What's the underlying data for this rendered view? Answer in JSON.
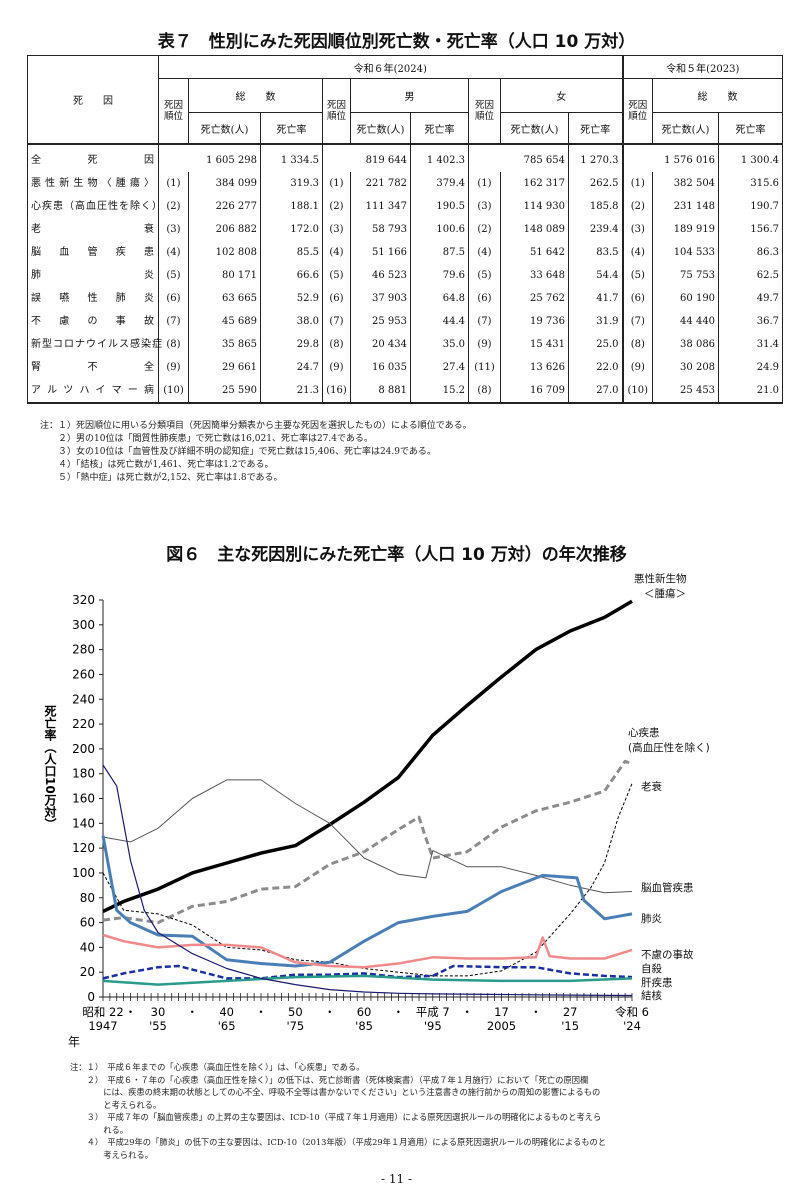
{
  "table": {
    "title": "表７　性別にみた死因順位別死亡数・死亡率（人口 10 万対）",
    "cause_header": "死　　因",
    "year_2024": "令和６年(2024)",
    "year_2023": "令和５年(2023)",
    "rank_header": "死因順位",
    "total": "総　　数",
    "male": "男",
    "female": "女",
    "deaths": "死亡数(人)",
    "rate": "死亡率",
    "rows": [
      {
        "cause": "全　　死　　因",
        "t": [
          "",
          "1 605 298",
          "1 334.5"
        ],
        "m": [
          "",
          "819 644",
          "1 402.3"
        ],
        "f": [
          "",
          "785 654",
          "1 270.3"
        ],
        "p": [
          "",
          "1 576 016",
          "1 300.4"
        ]
      },
      {
        "cause": "悪性新生物〈腫瘍〉",
        "t": [
          "(1)",
          "384 099",
          "319.3"
        ],
        "m": [
          "(1)",
          "221 782",
          "379.4"
        ],
        "f": [
          "(1)",
          "162 317",
          "262.5"
        ],
        "p": [
          "(1)",
          "382 504",
          "315.6"
        ]
      },
      {
        "cause": "心疾患（高血圧性を除く）",
        "t": [
          "(2)",
          "226 277",
          "188.1"
        ],
        "m": [
          "(2)",
          "111 347",
          "190.5"
        ],
        "f": [
          "(3)",
          "114 930",
          "185.8"
        ],
        "p": [
          "(2)",
          "231 148",
          "190.7"
        ]
      },
      {
        "cause": "老衰",
        "t": [
          "(3)",
          "206 882",
          "172.0"
        ],
        "m": [
          "(3)",
          "58 793",
          "100.6"
        ],
        "f": [
          "(2)",
          "148 089",
          "239.4"
        ],
        "p": [
          "(3)",
          "189 919",
          "156.7"
        ]
      },
      {
        "cause": "脳血管疾患",
        "t": [
          "(4)",
          "102 808",
          "85.5"
        ],
        "m": [
          "(4)",
          "51 166",
          "87.5"
        ],
        "f": [
          "(4)",
          "51 642",
          "83.5"
        ],
        "p": [
          "(4)",
          "104 533",
          "86.3"
        ]
      },
      {
        "cause": "肺炎",
        "t": [
          "(5)",
          "80 171",
          "66.6"
        ],
        "m": [
          "(5)",
          "46 523",
          "79.6"
        ],
        "f": [
          "(5)",
          "33 648",
          "54.4"
        ],
        "p": [
          "(5)",
          "75 753",
          "62.5"
        ]
      },
      {
        "cause": "誤嚥性肺炎",
        "t": [
          "(6)",
          "63 665",
          "52.9"
        ],
        "m": [
          "(6)",
          "37 903",
          "64.8"
        ],
        "f": [
          "(6)",
          "25 762",
          "41.7"
        ],
        "p": [
          "(6)",
          "60 190",
          "49.7"
        ]
      },
      {
        "cause": "不慮の事故",
        "t": [
          "(7)",
          "45 689",
          "38.0"
        ],
        "m": [
          "(7)",
          "25 953",
          "44.4"
        ],
        "f": [
          "(7)",
          "19 736",
          "31.9"
        ],
        "p": [
          "(7)",
          "44 440",
          "36.7"
        ]
      },
      {
        "cause": "新型コロナウイルス感染症",
        "t": [
          "(8)",
          "35 865",
          "29.8"
        ],
        "m": [
          "(8)",
          "20 434",
          "35.0"
        ],
        "f": [
          "(9)",
          "15 431",
          "25.0"
        ],
        "p": [
          "(8)",
          "38 086",
          "31.4"
        ]
      },
      {
        "cause": "腎不全",
        "t": [
          "(9)",
          "29 661",
          "24.7"
        ],
        "m": [
          "(9)",
          "16 035",
          "27.4"
        ],
        "f": [
          "(11)",
          "13 626",
          "22.0"
        ],
        "p": [
          "(9)",
          "30 208",
          "24.9"
        ]
      },
      {
        "cause": "アルツハイマー病",
        "t": [
          "(10)",
          "25 590",
          "21.3"
        ],
        "m": [
          "(16)",
          "8 881",
          "15.2"
        ],
        "f": [
          "(8)",
          "16 709",
          "27.0"
        ],
        "p": [
          "(10)",
          "25 453",
          "21.0"
        ]
      }
    ],
    "notes": [
      "注：１）死因順位に用いる分類項目（死因簡単分類表から主要な死因を選択したもの）による順位である。",
      "　　２）男の10位は「間質性肺疾患」で死亡数は16,021、死亡率は27.4である。",
      "　　３）女の10位は「血管性及び詳細不明の認知症」で死亡数は15,406、死亡率は24.9である。",
      "　　４）「結核」は死亡数が1,461、死亡率は1.2である。",
      "　　５）「熱中症」は死亡数が2,152、死亡率は1.8である。"
    ]
  },
  "chart_data": {
    "type": "line",
    "title": "図６　主な死因別にみた死亡率（人口 10 万対）の年次推移",
    "ylabel": "死亡率（人口10万対）",
    "xlabel": "年",
    "ylim": [
      0,
      320
    ],
    "yticks": [
      "0",
      "20",
      "40",
      "60",
      "80",
      "100",
      "120",
      "140",
      "160",
      "180",
      "200",
      "220",
      "240",
      "260",
      "280",
      "300",
      "320"
    ],
    "xlim": [
      1947,
      2024
    ],
    "xticks": [
      {
        "year": 1947,
        "era": "昭和 22",
        "west": "1947"
      },
      {
        "year": 1951,
        "era": "・",
        "west": ""
      },
      {
        "year": 1955,
        "era": "30",
        "west": "'55"
      },
      {
        "year": 1960,
        "era": "・",
        "west": ""
      },
      {
        "year": 1965,
        "era": "40",
        "west": "'65"
      },
      {
        "year": 1970,
        "era": "・",
        "west": ""
      },
      {
        "year": 1975,
        "era": "50",
        "west": "'75"
      },
      {
        "year": 1980,
        "era": "・",
        "west": ""
      },
      {
        "year": 1985,
        "era": "60",
        "west": "'85"
      },
      {
        "year": 1990,
        "era": "・",
        "west": ""
      },
      {
        "year": 1995,
        "era": "平成 7",
        "west": "'95"
      },
      {
        "year": 2000,
        "era": "・",
        "west": ""
      },
      {
        "year": 2005,
        "era": "17",
        "west": "2005"
      },
      {
        "year": 2010,
        "era": "・",
        "west": ""
      },
      {
        "year": 2015,
        "era": "27",
        "west": "'15"
      },
      {
        "year": 2024,
        "era": "令和 6",
        "west": "'24"
      }
    ],
    "series": [
      {
        "name": "悪性新生物＜腫瘍＞",
        "color": "#000000",
        "x": [
          1947,
          1950,
          1955,
          1960,
          1965,
          1970,
          1975,
          1980,
          1985,
          1990,
          1995,
          2000,
          2005,
          2010,
          2015,
          2020,
          2024
        ],
        "y": [
          69,
          77,
          87,
          100,
          108,
          116,
          122,
          139,
          157,
          177,
          211,
          235,
          258,
          280,
          295,
          306,
          319
        ]
      },
      {
        "name": "心疾患（高血圧性を除く）",
        "color": "#8c8c8c",
        "x": [
          1947,
          1950,
          1955,
          1960,
          1965,
          1970,
          1975,
          1980,
          1985,
          1990,
          1993,
          1994,
          1995,
          2000,
          2005,
          2010,
          2015,
          2020,
          2023,
          2024
        ],
        "y": [
          62,
          64,
          60,
          73,
          77,
          87,
          89,
          107,
          117,
          135,
          145,
          128,
          112,
          117,
          137,
          150,
          157,
          166,
          190,
          188
        ]
      },
      {
        "name": "老衰",
        "color": "#000000",
        "x": [
          1947,
          1950,
          1955,
          1960,
          1965,
          1970,
          1975,
          1980,
          1985,
          1990,
          1995,
          2000,
          2005,
          2010,
          2015,
          2018,
          2020,
          2022,
          2024
        ],
        "y": [
          100,
          70,
          67,
          58,
          40,
          38,
          30,
          28,
          23,
          20,
          17,
          17,
          21,
          36,
          67,
          88,
          108,
          145,
          172
        ]
      },
      {
        "name": "脳血管疾患",
        "color": "#555555",
        "x": [
          1947,
          1951,
          1955,
          1960,
          1965,
          1970,
          1975,
          1980,
          1985,
          1990,
          1994,
          1995,
          2000,
          2005,
          2010,
          2015,
          2020,
          2024
        ],
        "y": [
          129,
          125,
          136,
          160,
          175,
          175,
          156,
          140,
          112,
          99,
          96,
          118,
          105,
          105,
          98,
          90,
          84,
          85
        ]
      },
      {
        "name": "肺炎",
        "color": "#4a7fb5",
        "x": [
          1947,
          1949,
          1951,
          1955,
          1960,
          1965,
          1970,
          1975,
          1980,
          1985,
          1990,
          1995,
          2000,
          2005,
          2011,
          2016,
          2017,
          2020,
          2024
        ],
        "y": [
          130,
          70,
          60,
          50,
          49,
          30,
          27,
          25,
          28,
          45,
          60,
          65,
          69,
          85,
          98,
          96,
          78,
          63,
          67
        ]
      },
      {
        "name": "不慮の事故",
        "color": "#f08a8a",
        "x": [
          1947,
          1950,
          1955,
          1960,
          1965,
          1970,
          1975,
          1980,
          1985,
          1990,
          1995,
          2000,
          2005,
          2010,
          2011,
          2012,
          2015,
          2020,
          2024
        ],
        "y": [
          50,
          45,
          40,
          42,
          42,
          40,
          28,
          25,
          24,
          27,
          32,
          31,
          31,
          32,
          48,
          33,
          31,
          31,
          38
        ]
      },
      {
        "name": "自殺",
        "color": "#1a2fa0",
        "x": [
          1947,
          1950,
          1955,
          1958,
          1965,
          1970,
          1975,
          1980,
          1985,
          1990,
          1995,
          1998,
          2005,
          2010,
          2015,
          2020,
          2024
        ],
        "y": [
          15,
          19,
          24,
          25,
          15,
          15,
          18,
          18,
          19,
          16,
          17,
          25,
          24,
          24,
          19,
          17,
          16
        ]
      },
      {
        "name": "肝疾患",
        "color": "#2a9a8a",
        "x": [
          1947,
          1955,
          1965,
          1975,
          1985,
          1995,
          2005,
          2015,
          2024
        ],
        "y": [
          13,
          10,
          13,
          16,
          17,
          14,
          13,
          13,
          15
        ]
      },
      {
        "name": "結核",
        "color": "#1a1a6e",
        "x": [
          1947,
          1949,
          1951,
          1953,
          1955,
          1960,
          1965,
          1970,
          1975,
          1980,
          1985,
          1990,
          1995,
          2005,
          2015,
          2024
        ],
        "y": [
          187,
          170,
          110,
          70,
          52,
          35,
          23,
          15,
          10,
          6,
          4,
          3,
          2.5,
          2,
          1.5,
          1.2
        ]
      }
    ],
    "legend_labels": {
      "neoplasm": "悪性新生物",
      "neoplasm2": "＜腫瘍＞",
      "heart": "心疾患",
      "heart2": "(高血圧性を除く)",
      "senility": "老衰",
      "cerebro": "脳血管疾患",
      "pneumonia": "肺炎",
      "accident": "不慮の事故",
      "suicide": "自殺",
      "liver": "肝疾患",
      "tb": "結核"
    },
    "notes": [
      "注：１）　平成６年までの「心疾患（高血圧性を除く）」は、「心疾患」である。",
      "　　２）　平成６・７年の「心疾患（高血圧性を除く）」の低下は、死亡診断書（死体検案書）（平成７年１月施行）において「死亡の原因欄",
      "　　　　には、疾患の終末期の状態としての心不全、呼吸不全等は書かないでください」という注意書きの施行前からの周知の影響によるもの",
      "　　　　と考えられる。",
      "　　３）　平成７年の「脳血管疾患」の上昇の主な要因は、ICD-10（平成７年１月適用）による原死因選択ルールの明確化によるものと考えら",
      "　　　　れる。",
      "　　４）　平成29年の「肺炎」の低下の主な要因は、ICD-10（2013年版）（平成29年１月適用）による原死因選択ルールの明確化によるものと",
      "　　　　考えられる。"
    ]
  },
  "page_number": "- 11 -"
}
